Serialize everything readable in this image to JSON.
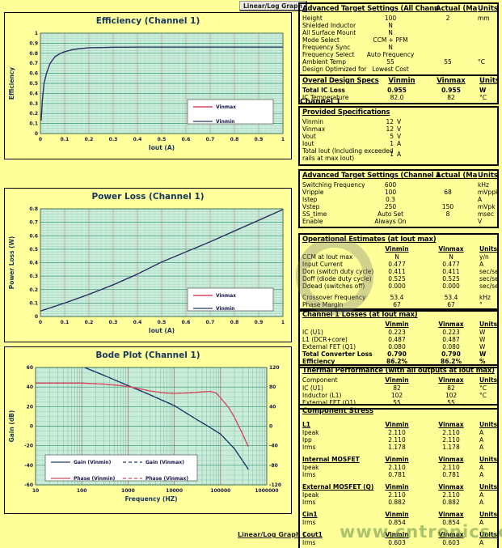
{
  "page": {
    "background": "#FFFF99"
  },
  "controls": {
    "linear_log_graph_top": "Linear/Log  Graph",
    "linear_log_graph_bottom": "Linear/Log  Graph |"
  },
  "watermark": {
    "text": "www.cntronics.com"
  },
  "chart_data": [
    {
      "type": "line",
      "title": "Efficiency (Channel 1)",
      "xlabel": "Iout (A)",
      "ylabel": "Efficiency",
      "xlim": [
        0,
        1
      ],
      "ylim": [
        0,
        1
      ],
      "x_log": false,
      "x_major": 0.1,
      "x_minor": 0.02,
      "y_major": 0.1,
      "y_minor": 0.025,
      "x_tick_values": [
        0,
        0.1,
        0.2,
        0.3,
        0.4,
        0.5,
        0.6,
        0.7,
        0.8,
        0.9,
        1
      ],
      "x_tick_labels": [
        "0",
        "0.1",
        "0.2",
        "0.3",
        "0.4",
        "0.5",
        "0.6",
        "0.7",
        "0.8",
        "0.9",
        "1"
      ],
      "y_tick_values": [
        0,
        0.1,
        0.2,
        0.3,
        0.4,
        0.5,
        0.6,
        0.7,
        0.8,
        0.9,
        1
      ],
      "y_tick_labels": [
        "0",
        "0.1",
        "0.2",
        "0.3",
        "0.4",
        "0.5",
        "0.6",
        "0.7",
        "0.8",
        "0.9",
        "1"
      ],
      "plot_bg": "#C9ECD9",
      "legend_position": "bottom-right",
      "series": [
        {
          "name": "Vinmax",
          "color": "#CC2244",
          "dash": false,
          "axis": "left",
          "x": [
            0.003,
            0.008,
            0.015,
            0.025,
            0.04,
            0.06,
            0.08,
            0.1,
            0.13,
            0.16,
            0.2,
            0.3,
            0.4,
            0.6,
            0.8,
            1
          ],
          "y": [
            0.13,
            0.33,
            0.5,
            0.6,
            0.7,
            0.765,
            0.795,
            0.815,
            0.835,
            0.845,
            0.855,
            0.86,
            0.862,
            0.862,
            0.862,
            0.862
          ]
        },
        {
          "name": "Vinmin",
          "color": "#1F3A68",
          "dash": false,
          "axis": "left",
          "x": [
            0.003,
            0.008,
            0.015,
            0.025,
            0.04,
            0.06,
            0.08,
            0.1,
            0.13,
            0.16,
            0.2,
            0.3,
            0.4,
            0.6,
            0.8,
            1
          ],
          "y": [
            0.13,
            0.33,
            0.5,
            0.6,
            0.7,
            0.765,
            0.795,
            0.815,
            0.835,
            0.845,
            0.855,
            0.86,
            0.862,
            0.862,
            0.862,
            0.862
          ]
        }
      ]
    },
    {
      "type": "line",
      "title": "Power Loss (Channel 1)",
      "xlabel": "Iout (A)",
      "ylabel": "Power Loss (W)",
      "xlim": [
        0,
        1
      ],
      "ylim": [
        0,
        0.8
      ],
      "x_log": false,
      "x_major": 0.1,
      "x_minor": 0.02,
      "y_major": 0.1,
      "y_minor": 0.02,
      "x_tick_values": [
        0,
        0.1,
        0.2,
        0.3,
        0.4,
        0.5,
        0.6,
        0.7,
        0.8,
        0.9,
        1
      ],
      "x_tick_labels": [
        "0",
        "0.1",
        "0.2",
        "0.3",
        "0.4",
        "0.5",
        "0.6",
        "0.7",
        "0.8",
        "0.9",
        "1"
      ],
      "y_tick_values": [
        0,
        0.1,
        0.2,
        0.3,
        0.4,
        0.5,
        0.6,
        0.7,
        0.8
      ],
      "y_tick_labels": [
        "0",
        "0.1",
        "0.2",
        "0.3",
        "0.4",
        "0.5",
        "0.6",
        "0.7",
        "0.8"
      ],
      "plot_bg": "#C9ECD9",
      "legend_position": "bottom-right",
      "series": [
        {
          "name": "Vinmax",
          "color": "#CC2244",
          "dash": false,
          "axis": "left",
          "x": [
            0,
            0.1,
            0.2,
            0.3,
            0.4,
            0.5,
            0.6,
            0.7,
            0.8,
            0.9,
            1
          ],
          "y": [
            0.04,
            0.1,
            0.165,
            0.235,
            0.315,
            0.405,
            0.48,
            0.555,
            0.635,
            0.715,
            0.795
          ]
        },
        {
          "name": "Vinmin",
          "color": "#1F3A68",
          "dash": false,
          "axis": "left",
          "x": [
            0,
            0.1,
            0.2,
            0.3,
            0.4,
            0.5,
            0.6,
            0.7,
            0.8,
            0.9,
            1
          ],
          "y": [
            0.04,
            0.1,
            0.165,
            0.235,
            0.315,
            0.405,
            0.48,
            0.555,
            0.635,
            0.715,
            0.795
          ]
        }
      ]
    },
    {
      "type": "line",
      "title": "Bode Plot (Channel 1)",
      "xlabel": "Frequency (HZ)",
      "ylabel": "Gain (dB)",
      "xlim": [
        10,
        1000000
      ],
      "ylim": [
        -60,
        60
      ],
      "y2lim": [
        -120,
        120
      ],
      "x_log": true,
      "y_major": 20,
      "y_minor": 5,
      "x_tick_values": [
        10,
        100,
        1000,
        10000,
        100000,
        1000000
      ],
      "x_tick_labels": [
        "10",
        "100",
        "1000",
        "10000",
        "100000",
        "1000000"
      ],
      "y_tick_values": [
        -60,
        -40,
        -20,
        0,
        20,
        40,
        60
      ],
      "y_tick_labels": [
        "-60",
        "-40",
        "-20",
        "0",
        "20",
        "40",
        "60"
      ],
      "y2_tick_values": [
        -120,
        -80,
        -40,
        0,
        40,
        80,
        120
      ],
      "y2_tick_labels": [
        "-120",
        "-80",
        "-40",
        "0",
        "40",
        "80",
        "120"
      ],
      "plot_bg": "#C9ECD9",
      "legend_position": "bottom-left",
      "series": [
        {
          "name": "Gain (Vinmin)",
          "color": "#1F3A68",
          "dash": false,
          "axis": "left",
          "x": [
            115,
            300,
            1000,
            3000,
            10000,
            30000,
            53400,
            100000,
            200000,
            400000
          ],
          "y": [
            60,
            52,
            41.5,
            32,
            21,
            7,
            0,
            -8,
            -23,
            -44
          ]
        },
        {
          "name": "Gain (Vinmax)",
          "color": "#1F3A68",
          "dash": true,
          "axis": "left",
          "x": [
            115,
            300,
            1000,
            3000,
            10000,
            30000,
            53400,
            100000,
            200000,
            400000
          ],
          "y": [
            60,
            52,
            41.5,
            32,
            21,
            7,
            0,
            -8,
            -23,
            -44
          ]
        },
        {
          "name": "Phase (Vinmin)",
          "color": "#D44A60",
          "dash": false,
          "axis": "right",
          "x": [
            10,
            50,
            100,
            300,
            700,
            1500,
            3000,
            6000,
            10000,
            20000,
            40000,
            60000,
            80000,
            100000,
            150000,
            200000,
            300000,
            400000
          ],
          "y": [
            88,
            88,
            88,
            86,
            83,
            78,
            72,
            68,
            67,
            68,
            70,
            71,
            68,
            58,
            38,
            18,
            -16,
            -42
          ]
        },
        {
          "name": "Phase (Vinmax)",
          "color": "#D44A60",
          "dash": true,
          "axis": "right",
          "x": [
            10,
            50,
            100,
            300,
            700,
            1500,
            3000,
            6000,
            10000,
            20000,
            40000,
            60000,
            80000,
            100000,
            150000,
            200000,
            300000,
            400000
          ],
          "y": [
            88,
            88,
            88,
            86,
            83,
            78,
            72,
            68,
            67,
            68,
            70,
            71,
            68,
            58,
            38,
            18,
            -16,
            -42
          ]
        }
      ]
    }
  ],
  "right_column": [
    {
      "type": "table",
      "cls": "t-adv",
      "title": "Advanced Target Settings (All Chann",
      "headers_on_title": true,
      "h2": "Actual (Ma",
      "h3": "Units",
      "rows": [
        [
          "Height",
          "100",
          "2",
          "mm"
        ],
        [
          "Shielded Inductor",
          "N",
          "",
          ""
        ],
        [
          "All Surface Mount",
          "N",
          "",
          ""
        ],
        [
          "Mode Select",
          "CCM + PFM",
          "",
          ""
        ],
        [
          "Frequency Sync",
          "N",
          "",
          ""
        ],
        [
          "Frequency Select",
          "Auto Frequency",
          "",
          ""
        ],
        [
          "Ambient Temp",
          "55",
          "55",
          "°C"
        ],
        [
          "Design Optimized for",
          "Lowest Cost",
          "",
          ""
        ]
      ]
    },
    {
      "type": "table",
      "cls": "t-vin",
      "title": "Overal Design Specs",
      "headers_on_title": true,
      "h1": "Vinmin",
      "h2": "Vinmax",
      "h3": "Units",
      "rows": [
        [
          "Total IC Loss",
          "0.955",
          "0.955",
          "W",
          true
        ],
        [
          "IC Temperature",
          "82.0",
          "82",
          "°C"
        ]
      ]
    },
    {
      "type": "label",
      "text": "Channel 1"
    },
    {
      "type": "table",
      "cls": "t-provided",
      "title": "Provided Specifications",
      "rows": [
        [
          "Vinmin",
          "12",
          "V"
        ],
        [
          "Vinmax",
          "12",
          "V"
        ],
        [
          "Vout",
          "5",
          "V"
        ],
        [
          "Iout",
          "1",
          "A"
        ],
        [
          "Total Iout (Including exceeded\nrails at max Iout)",
          "1",
          "A"
        ]
      ]
    },
    {
      "type": "table",
      "cls": "t-adv",
      "title": "Advanced Target Settings (Channel 1",
      "headers_on_title": true,
      "h2": "Actual (Ma",
      "h3": "Units",
      "rows": [
        [
          "Switching Frequency",
          "600",
          "",
          "kHz"
        ],
        [
          "Vripple",
          "100",
          "68",
          "mVppk"
        ],
        [
          "Istep",
          "0.3",
          "",
          "A"
        ],
        [
          "Vstep",
          "250",
          "150",
          "mVpk"
        ],
        [
          "SS_time",
          "Auto Set",
          "8",
          "msec"
        ],
        [
          "Enable",
          "Always On",
          "",
          "V"
        ]
      ]
    },
    {
      "type": "table",
      "cls": "t-vin",
      "title": "Operational Estimates (at Iout max)",
      "header_row": true,
      "h1": "Vinmin",
      "h2": "Vinmax",
      "h3": "Units",
      "rows": [
        [
          "CCM at Iout max",
          "N",
          "N",
          "y/n"
        ],
        [
          "Input Current",
          "0.477",
          "0.477",
          "A"
        ],
        [
          "Don (switch duty cycle)",
          "0.411",
          "0.411",
          "sec/sec"
        ],
        [
          "Doff (diode duty cycle)",
          "0.525",
          "0.525",
          "sec/sec"
        ],
        [
          "Ddead (switches off)",
          "0.000",
          "0.000",
          "sec/sec"
        ],
        [
          "",
          "",
          "",
          ""
        ],
        [
          "Crossover Frequency",
          "53.4",
          "53.4",
          "kHz"
        ],
        [
          "Phase Margin",
          "67",
          "67",
          "°"
        ]
      ]
    },
    {
      "type": "table",
      "cls": "t-vin",
      "title": "Channel 1 Losses (at Iout max)",
      "header_row": true,
      "h1": "Vinmin",
      "h2": "Vinmax",
      "h3": "Units",
      "rows": [
        [
          "IC (U1)",
          "0.223",
          "0.223",
          "W"
        ],
        [
          "L1 (DCR+core)",
          "0.487",
          "0.487",
          "W"
        ],
        [
          "External FET (Q1)",
          "0.080",
          "0.080",
          "W"
        ],
        [
          "Total Converter Loss",
          "0.790",
          "0.790",
          "W",
          true
        ],
        [
          "Efficiency",
          "86.2%",
          "86.2%",
          "%",
          true
        ]
      ]
    },
    {
      "type": "table",
      "cls": "t-vin",
      "title": "Thermal Performance (with all outputs at Iout max)",
      "header_row": true,
      "header_label": "Component",
      "h1": "Vinmin",
      "h2": "Vinmax",
      "h3": "Units",
      "rows": [
        [
          "IC (U1)",
          "82",
          "82",
          "°C"
        ],
        [
          "Inductor (L1)",
          "102",
          "102",
          "°C"
        ],
        [
          "External FET (Q1)",
          "55",
          "55",
          ""
        ]
      ]
    },
    {
      "type": "stress",
      "heading": "Component Stress",
      "h1": "Vinmin",
      "h2": "Vinmax",
      "h3": "Units",
      "groups": [
        {
          "name": "L1",
          "rows": [
            [
              "Ipeak",
              "2.110",
              "2.110",
              "A"
            ],
            [
              "Ipp",
              "2.110",
              "2.110",
              "A"
            ],
            [
              "Irms",
              "1.178",
              "1.178",
              "A"
            ]
          ]
        },
        {
          "name": "Internal MOSFET",
          "rows": [
            [
              "Ipeak",
              "2.110",
              "2.110",
              "A"
            ],
            [
              "Irms",
              "0.781",
              "0.781",
              "A"
            ]
          ]
        },
        {
          "name": "External MOSFET (Q)",
          "rows": [
            [
              "Ipeak",
              "2.110",
              "2.110",
              "A"
            ],
            [
              "Irms",
              "0.882",
              "0.882",
              "A"
            ]
          ]
        },
        {
          "name": "Cin1",
          "rows": [
            [
              "Irms",
              "0.854",
              "0.854",
              "A"
            ]
          ]
        },
        {
          "name": "Cout1",
          "rows": [
            [
              "Irms",
              "0.603",
              "0.603",
              "A"
            ]
          ]
        }
      ]
    }
  ]
}
